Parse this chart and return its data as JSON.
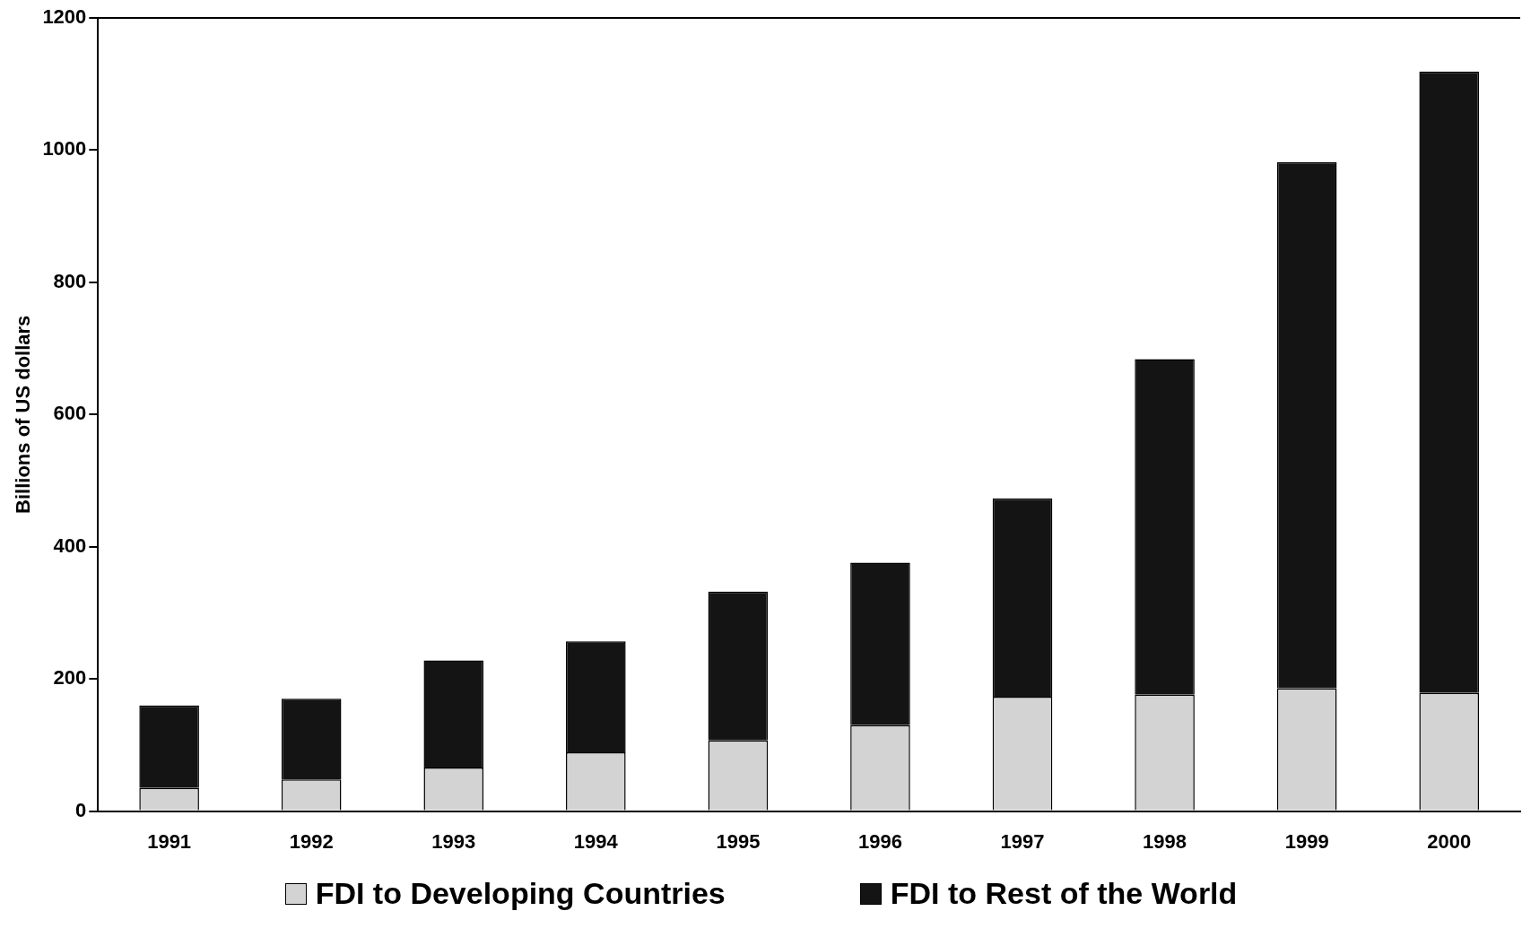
{
  "chart_data": {
    "type": "bar",
    "ylabel": "Billions of US dollars",
    "categories": [
      "1991",
      "1992",
      "1993",
      "1994",
      "1995",
      "1996",
      "1997",
      "1998",
      "1999",
      "2000"
    ],
    "series": [
      {
        "name": "FDI to Developing Countries",
        "color": "#d3d3d3",
        "values": [
          35,
          48,
          66,
          89,
          107,
          130,
          173,
          176,
          186,
          179
        ]
      },
      {
        "name": "FDI to Rest of the World",
        "color": "#141414",
        "values": [
          125,
          122,
          162,
          168,
          225,
          246,
          300,
          508,
          796,
          940
        ]
      }
    ],
    "stacked": true,
    "ylim": [
      0,
      1200
    ],
    "yticks": [
      0,
      200,
      400,
      600,
      800,
      1000,
      1200
    ],
    "grid": false,
    "legend": "bottom"
  }
}
